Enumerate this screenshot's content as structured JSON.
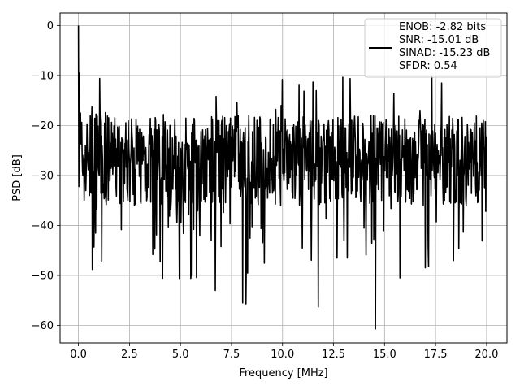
{
  "chart_data": {
    "type": "line",
    "xlabel": "Frequency [MHz]",
    "ylabel": "PSD [dB]",
    "xlim": [
      -0.9,
      21.0
    ],
    "ylim": [
      -63.5,
      2.5
    ],
    "xticks": [
      0.0,
      2.5,
      5.0,
      7.5,
      10.0,
      12.5,
      15.0,
      17.5,
      20.0
    ],
    "xtick_labels": [
      "0.0",
      "2.5",
      "5.0",
      "7.5",
      "10.0",
      "12.5",
      "15.0",
      "17.5",
      "20.0"
    ],
    "yticks": [
      0,
      -10,
      -20,
      -30,
      -40,
      -50,
      -60
    ],
    "ytick_labels": [
      "0",
      "−10",
      "−20",
      "−30",
      "−40",
      "−50",
      "−60"
    ],
    "grid": true,
    "legend": {
      "position": "top-right",
      "lines": [
        "ENOB: -2.82 bits",
        "SNR: -15.01 dB",
        "SINAD: -15.23 dB",
        "SFDR: 0.54"
      ]
    },
    "series": [
      {
        "color": "#000000",
        "noise_floor_dB": -27,
        "x_range": [
          0.0,
          20.0
        ],
        "samples": 1000,
        "features": [
          {
            "x": 0.0,
            "y": 0.0
          },
          {
            "x": 0.05,
            "y": -9.5
          },
          {
            "x": 0.1,
            "y": -17.5
          },
          {
            "x": 0.25,
            "y": -28.0
          },
          {
            "x": 1.15,
            "y": -47.3
          },
          {
            "x": 4.95,
            "y": -50.6
          },
          {
            "x": 5.5,
            "y": -50.6
          },
          {
            "x": 6.7,
            "y": -53.0
          },
          {
            "x": 8.05,
            "y": -55.5
          },
          {
            "x": 8.2,
            "y": -55.7
          },
          {
            "x": 11.75,
            "y": -56.3
          },
          {
            "x": 14.55,
            "y": -60.7
          },
          {
            "x": 1.05,
            "y": -10.6
          },
          {
            "x": 10.0,
            "y": -10.8
          },
          {
            "x": 17.8,
            "y": -11.5
          }
        ]
      }
    ]
  }
}
